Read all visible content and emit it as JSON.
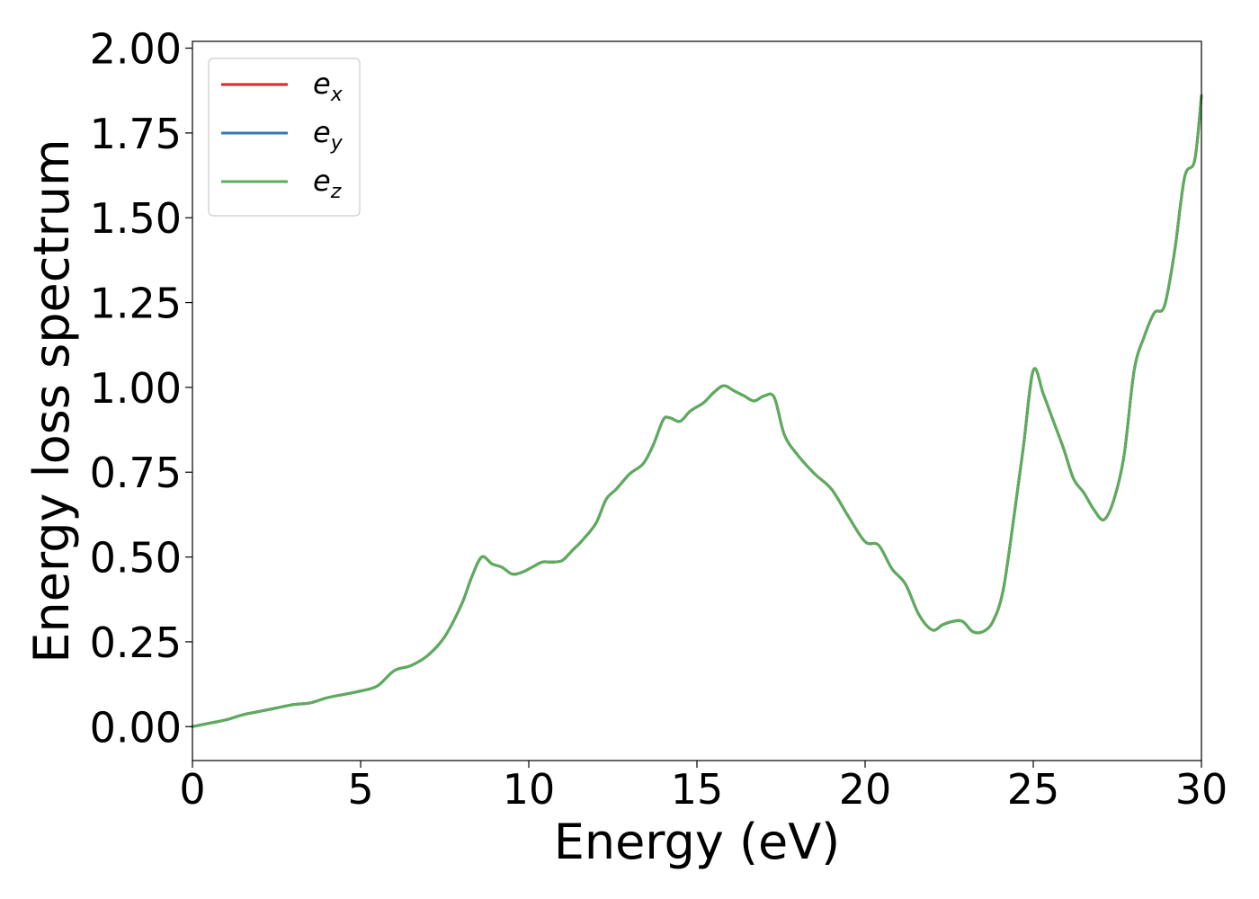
{
  "chart_data": {
    "type": "line",
    "title": "",
    "xlabel": "Energy (eV)",
    "ylabel": "Energy loss spectrum",
    "xlim": [
      0,
      30
    ],
    "ylim": [
      -0.1,
      2.02
    ],
    "xticks": [
      0,
      5,
      10,
      15,
      20,
      25,
      30
    ],
    "xtick_labels": [
      "0",
      "5",
      "10",
      "15",
      "20",
      "25",
      "30"
    ],
    "yticks": [
      0.0,
      0.25,
      0.5,
      0.75,
      1.0,
      1.25,
      1.5,
      1.75,
      2.0
    ],
    "ytick_labels": [
      "0.00",
      "0.25",
      "0.50",
      "0.75",
      "1.00",
      "1.25",
      "1.50",
      "1.75",
      "2.00"
    ],
    "grid": false,
    "legend_position": "top-left",
    "x": [
      0,
      0.5,
      1.0,
      1.5,
      2.0,
      2.5,
      3.0,
      3.5,
      4.0,
      4.5,
      5.0,
      5.5,
      6.0,
      6.5,
      7.0,
      7.5,
      8.0,
      8.3,
      8.6,
      8.9,
      9.2,
      9.5,
      9.8,
      10.1,
      10.4,
      10.7,
      11.0,
      11.3,
      11.6,
      12.0,
      12.3,
      12.6,
      13.0,
      13.4,
      13.7,
      14.0,
      14.2,
      14.5,
      14.8,
      15.2,
      15.5,
      15.8,
      16.1,
      16.4,
      16.7,
      17.0,
      17.3,
      17.6,
      18.0,
      18.5,
      19.0,
      19.5,
      20.0,
      20.4,
      20.8,
      21.2,
      21.6,
      22.0,
      22.3,
      22.6,
      22.9,
      23.2,
      23.5,
      23.8,
      24.1,
      24.4,
      24.7,
      25.0,
      25.3,
      25.6,
      25.9,
      26.2,
      26.5,
      26.8,
      27.1,
      27.4,
      27.7,
      28.0,
      28.3,
      28.6,
      28.9,
      29.2,
      29.5,
      29.8,
      30.0
    ],
    "series": [
      {
        "name": "e_x",
        "color": "#d62728",
        "y": [
          0.0,
          0.01,
          0.02,
          0.035,
          0.045,
          0.055,
          0.065,
          0.07,
          0.085,
          0.095,
          0.105,
          0.12,
          0.165,
          0.18,
          0.21,
          0.265,
          0.36,
          0.44,
          0.5,
          0.48,
          0.47,
          0.45,
          0.455,
          0.47,
          0.485,
          0.485,
          0.49,
          0.52,
          0.55,
          0.6,
          0.67,
          0.7,
          0.745,
          0.775,
          0.83,
          0.905,
          0.91,
          0.9,
          0.93,
          0.955,
          0.985,
          1.005,
          0.99,
          0.975,
          0.96,
          0.975,
          0.97,
          0.86,
          0.8,
          0.745,
          0.7,
          0.62,
          0.545,
          0.535,
          0.465,
          0.42,
          0.33,
          0.285,
          0.3,
          0.31,
          0.31,
          0.28,
          0.28,
          0.31,
          0.4,
          0.6,
          0.82,
          1.05,
          0.98,
          0.9,
          0.82,
          0.73,
          0.69,
          0.64,
          0.61,
          0.67,
          0.8,
          1.05,
          1.15,
          1.22,
          1.24,
          1.4,
          1.62,
          1.67,
          1.86
        ]
      },
      {
        "name": "e_y",
        "color": "#3a78b5",
        "y": [
          0.0,
          0.01,
          0.02,
          0.035,
          0.045,
          0.055,
          0.065,
          0.07,
          0.085,
          0.095,
          0.105,
          0.12,
          0.165,
          0.18,
          0.21,
          0.265,
          0.36,
          0.44,
          0.5,
          0.48,
          0.47,
          0.45,
          0.455,
          0.47,
          0.485,
          0.485,
          0.49,
          0.52,
          0.55,
          0.6,
          0.67,
          0.7,
          0.745,
          0.775,
          0.83,
          0.905,
          0.91,
          0.9,
          0.93,
          0.955,
          0.985,
          1.005,
          0.99,
          0.975,
          0.96,
          0.975,
          0.97,
          0.86,
          0.8,
          0.745,
          0.7,
          0.62,
          0.545,
          0.535,
          0.465,
          0.42,
          0.33,
          0.285,
          0.3,
          0.31,
          0.31,
          0.28,
          0.28,
          0.31,
          0.4,
          0.6,
          0.82,
          1.05,
          0.98,
          0.9,
          0.82,
          0.73,
          0.69,
          0.64,
          0.61,
          0.67,
          0.8,
          1.05,
          1.15,
          1.22,
          1.24,
          1.4,
          1.62,
          1.67,
          1.86
        ]
      },
      {
        "name": "e_z",
        "color": "#5cad5a",
        "y": [
          0.0,
          0.01,
          0.02,
          0.035,
          0.045,
          0.055,
          0.065,
          0.07,
          0.085,
          0.095,
          0.105,
          0.12,
          0.165,
          0.18,
          0.21,
          0.265,
          0.36,
          0.44,
          0.5,
          0.48,
          0.47,
          0.45,
          0.455,
          0.47,
          0.485,
          0.485,
          0.49,
          0.52,
          0.55,
          0.6,
          0.67,
          0.7,
          0.745,
          0.775,
          0.83,
          0.905,
          0.91,
          0.9,
          0.93,
          0.955,
          0.985,
          1.005,
          0.99,
          0.975,
          0.96,
          0.975,
          0.97,
          0.86,
          0.8,
          0.745,
          0.7,
          0.62,
          0.545,
          0.535,
          0.465,
          0.42,
          0.33,
          0.285,
          0.3,
          0.31,
          0.31,
          0.28,
          0.28,
          0.31,
          0.4,
          0.6,
          0.82,
          1.05,
          0.98,
          0.9,
          0.82,
          0.73,
          0.69,
          0.64,
          0.61,
          0.67,
          0.8,
          1.05,
          1.15,
          1.22,
          1.24,
          1.4,
          1.62,
          1.67,
          1.86
        ]
      }
    ],
    "legend": [
      {
        "base": "e",
        "sub": "x",
        "color": "#d62728"
      },
      {
        "base": "e",
        "sub": "y",
        "color": "#3a78b5"
      },
      {
        "base": "e",
        "sub": "z",
        "color": "#5cad5a"
      }
    ]
  }
}
